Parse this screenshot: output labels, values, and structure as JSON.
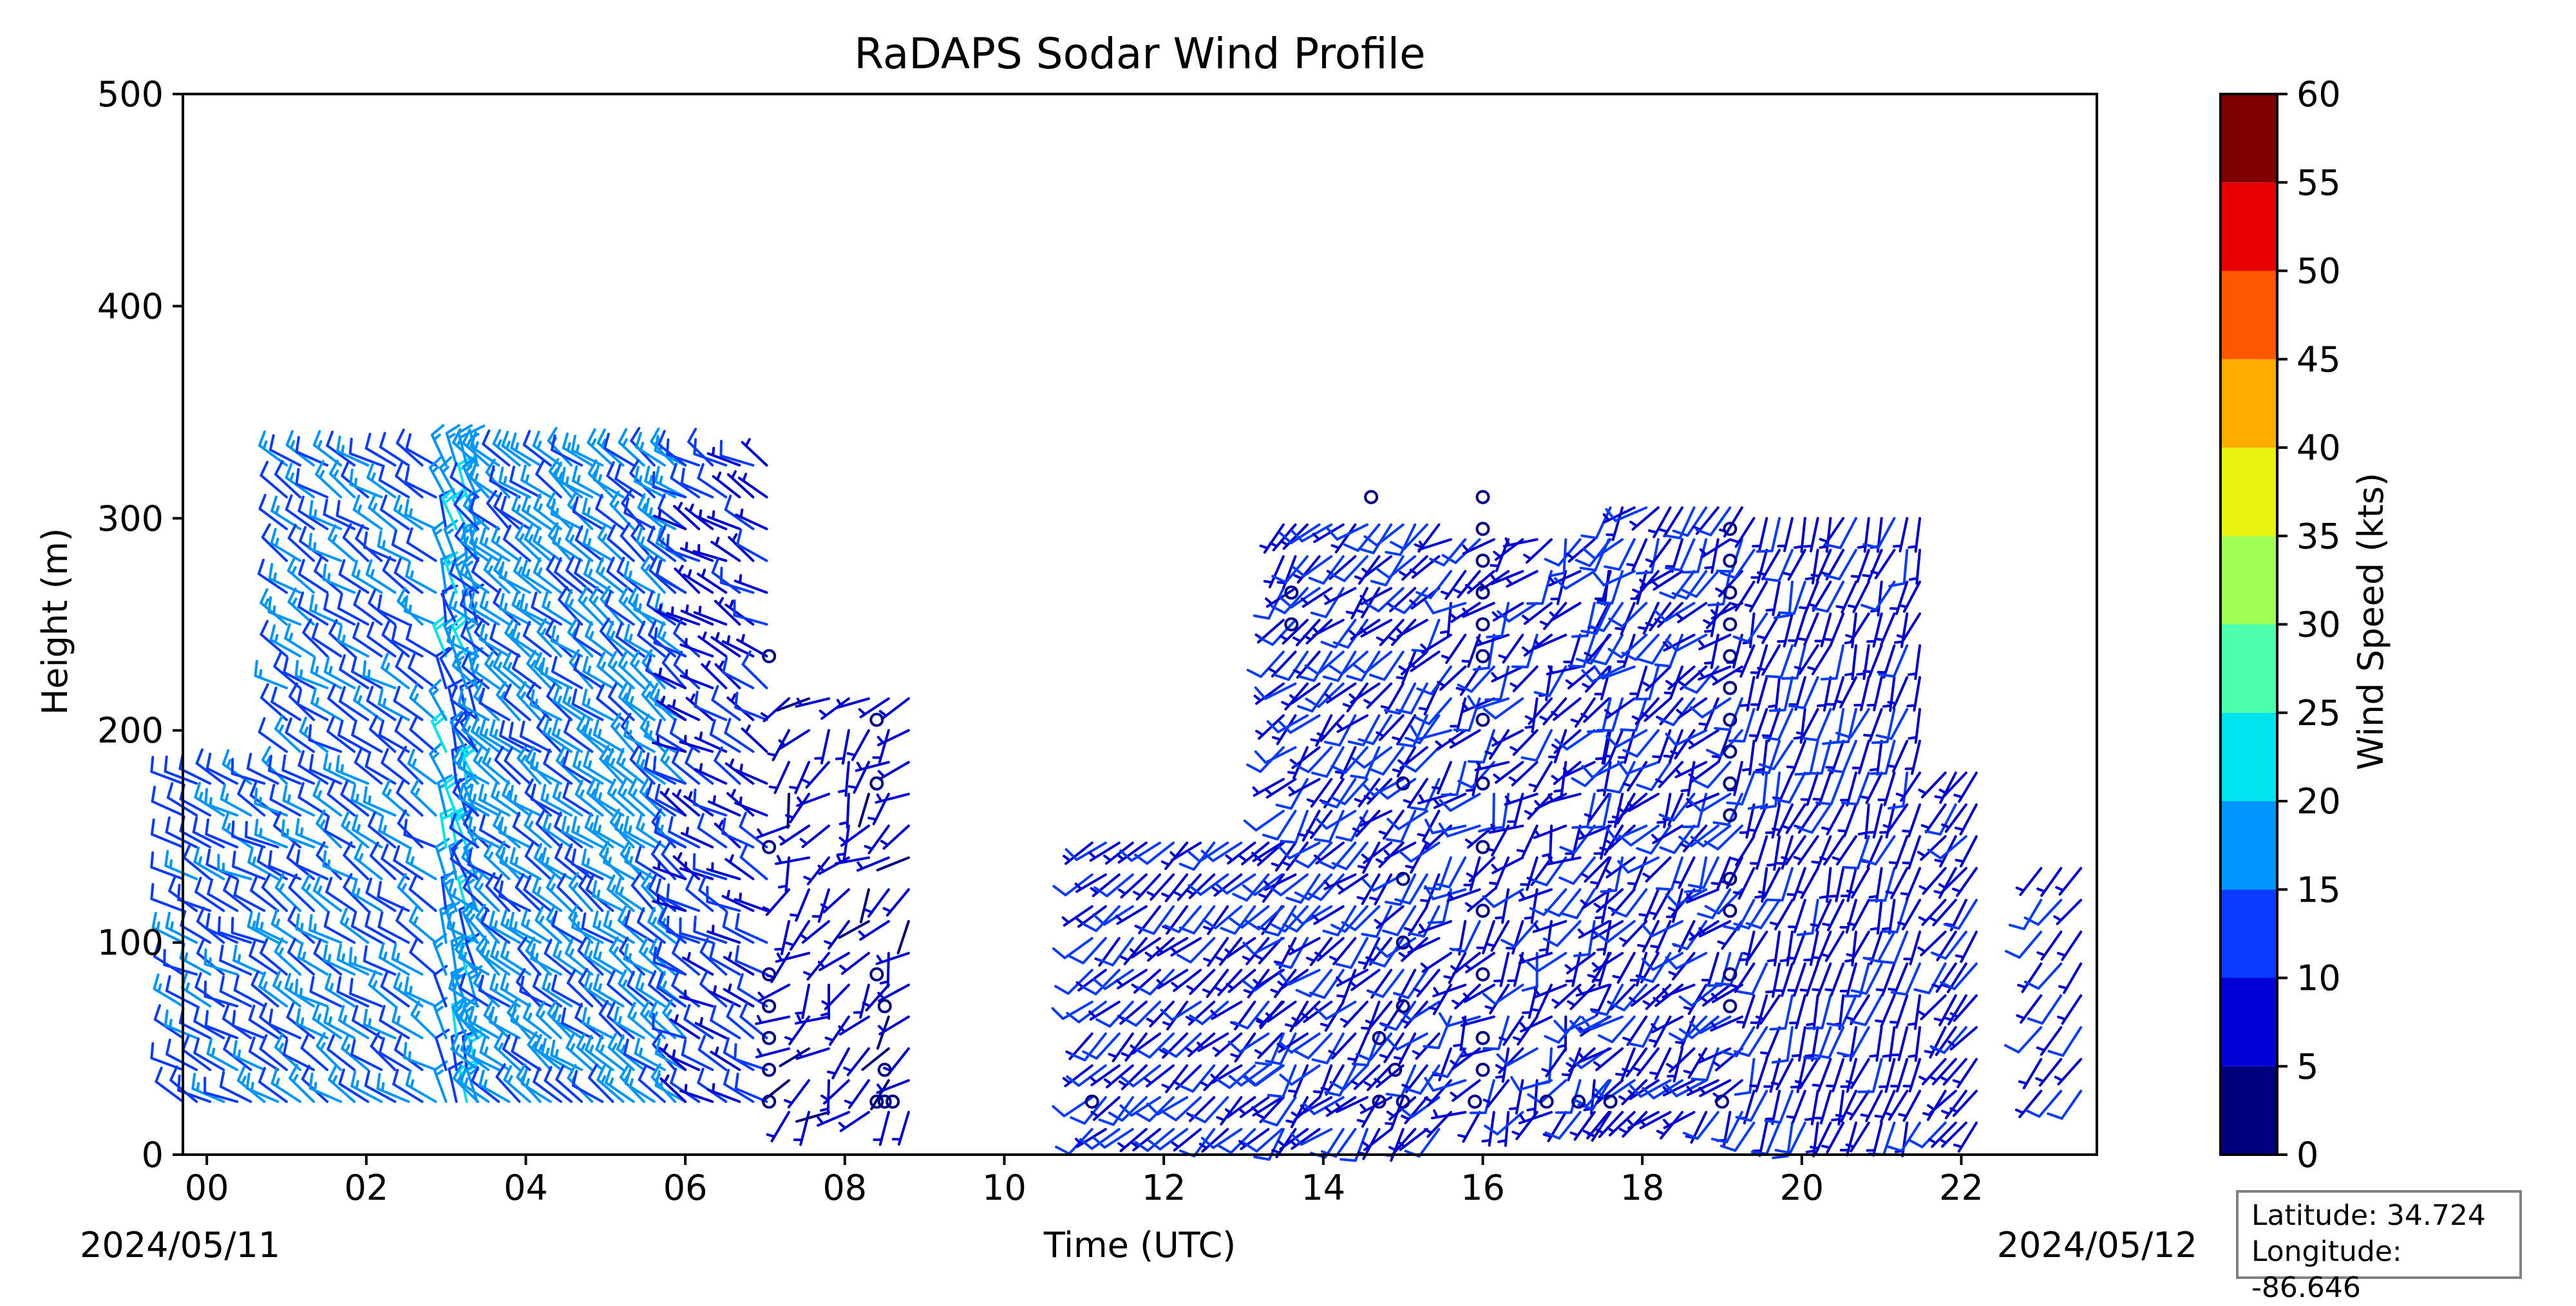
{
  "colors": {
    "axes": "#000000",
    "calm_marker": "#00008b",
    "colorbar": [
      "#00007f",
      "#0000d4",
      "#0a3cff",
      "#0096ff",
      "#00e4f0",
      "#4bffad",
      "#a0ff56",
      "#e8f20e",
      "#ffac00",
      "#ff5700",
      "#e80000",
      "#7f0000"
    ]
  },
  "info": {
    "latitude": "Latitude: 34.724",
    "longitude": "Longitude: -86.646"
  },
  "chart_data": {
    "type": "wind-barb profile",
    "title": "RaDAPS Sodar Wind Profile",
    "xlabel": "Time (UTC)",
    "ylabel": "Height (m)",
    "start_date_label": "2024/05/11",
    "end_date_label": "2024/05/12",
    "xlim": [
      -0.3,
      23.7
    ],
    "ylim": [
      0,
      500
    ],
    "x_ticks": [
      0,
      2,
      4,
      6,
      8,
      10,
      12,
      14,
      16,
      18,
      20,
      22
    ],
    "x_tick_labels": [
      "00",
      "02",
      "04",
      "06",
      "08",
      "10",
      "12",
      "14",
      "16",
      "18",
      "20",
      "22"
    ],
    "y_ticks": [
      0,
      100,
      200,
      300,
      400,
      500
    ],
    "y_tick_labels": [
      "0",
      "100",
      "200",
      "300",
      "400",
      "500"
    ],
    "colorbar": {
      "label": "Wind Speed (kts)",
      "bounds": [
        0,
        5,
        10,
        15,
        20,
        25,
        30,
        35,
        40,
        45,
        50,
        55,
        60
      ],
      "tick_labels": [
        "0",
        "5",
        "10",
        "15",
        "20",
        "25",
        "30",
        "35",
        "40",
        "45",
        "50",
        "55",
        "60"
      ]
    },
    "barb_blocks": [
      {
        "t_start": -0.3,
        "t_end": 1.0,
        "step": 0.17,
        "z_min": 25,
        "z_max": 175,
        "speed": [
          10,
          17
        ],
        "dir": [
          285,
          310
        ]
      },
      {
        "t_start": 1.0,
        "t_end": 3.0,
        "step": 0.17,
        "z_min": 25,
        "z_max": 330,
        "speed": [
          11,
          19
        ],
        "dir": [
          290,
          315
        ]
      },
      {
        "t_start": 3.0,
        "t_end": 3.4,
        "step": 0.13,
        "z_min": 25,
        "z_max": 330,
        "speed": [
          13,
          22
        ],
        "dir": [
          330,
          355
        ]
      },
      {
        "t_start": 3.4,
        "t_end": 6.0,
        "step": 0.13,
        "z_min": 25,
        "z_max": 330,
        "speed": [
          12,
          20
        ],
        "dir": [
          295,
          320
        ]
      },
      {
        "t_start": 6.0,
        "t_end": 7.1,
        "step": 0.17,
        "z_min": 25,
        "z_max": 325,
        "speed": [
          7,
          13
        ],
        "dir": [
          285,
          315
        ]
      },
      {
        "t_start": 7.3,
        "t_end": 8.9,
        "step": 0.25,
        "z_min": 20,
        "z_max": 215,
        "speed": [
          4,
          9
        ],
        "dir": [
          180,
          260
        ]
      },
      {
        "t_start": 11.1,
        "t_end": 13.5,
        "step": 0.17,
        "z_min": 12,
        "z_max": 155,
        "speed": [
          7,
          12
        ],
        "dir": [
          215,
          240
        ]
      },
      {
        "t_start": 13.5,
        "t_end": 15.5,
        "step": 0.15,
        "z_min": 12,
        "z_max": 305,
        "speed": [
          6,
          13
        ],
        "dir": [
          200,
          245
        ]
      },
      {
        "t_start": 15.6,
        "t_end": 17.6,
        "step": 0.18,
        "z_min": 20,
        "z_max": 290,
        "speed": [
          5,
          12
        ],
        "dir": [
          180,
          260
        ]
      },
      {
        "t_start": 17.6,
        "t_end": 19.3,
        "step": 0.15,
        "z_min": 20,
        "z_max": 310,
        "speed": [
          5,
          13
        ],
        "dir": [
          190,
          250
        ]
      },
      {
        "t_start": 19.4,
        "t_end": 21.5,
        "step": 0.16,
        "z_min": 15,
        "z_max": 300,
        "speed": [
          6,
          12
        ],
        "dir": [
          185,
          215
        ]
      },
      {
        "t_start": 21.8,
        "t_end": 22.3,
        "step": 0.13,
        "z_min": 15,
        "z_max": 185,
        "speed": [
          7,
          11
        ],
        "dir": [
          205,
          230
        ]
      },
      {
        "t_start": 23.0,
        "t_end": 23.7,
        "step": 0.25,
        "z_min": 30,
        "z_max": 135,
        "speed": [
          8,
          11
        ],
        "dir": [
          210,
          225
        ]
      }
    ],
    "calm_points": [
      {
        "t": 7.05,
        "z": 25
      },
      {
        "t": 7.05,
        "z": 40
      },
      {
        "t": 7.05,
        "z": 55
      },
      {
        "t": 7.05,
        "z": 70
      },
      {
        "t": 7.05,
        "z": 85
      },
      {
        "t": 7.05,
        "z": 145
      },
      {
        "t": 7.05,
        "z": 235
      },
      {
        "t": 8.4,
        "z": 25
      },
      {
        "t": 8.5,
        "z": 25
      },
      {
        "t": 8.6,
        "z": 25
      },
      {
        "t": 8.5,
        "z": 40
      },
      {
        "t": 8.5,
        "z": 70
      },
      {
        "t": 8.4,
        "z": 85
      },
      {
        "t": 8.4,
        "z": 175
      },
      {
        "t": 8.4,
        "z": 205
      },
      {
        "t": 11.1,
        "z": 25
      },
      {
        "t": 13.6,
        "z": 265
      },
      {
        "t": 13.6,
        "z": 250
      },
      {
        "t": 14.6,
        "z": 310
      },
      {
        "t": 14.7,
        "z": 25
      },
      {
        "t": 14.7,
        "z": 55
      },
      {
        "t": 14.9,
        "z": 40
      },
      {
        "t": 15.0,
        "z": 25
      },
      {
        "t": 15.0,
        "z": 70
      },
      {
        "t": 15.0,
        "z": 100
      },
      {
        "t": 15.0,
        "z": 130
      },
      {
        "t": 15.0,
        "z": 175
      },
      {
        "t": 16.0,
        "z": 310
      },
      {
        "t": 16.0,
        "z": 295
      },
      {
        "t": 16.0,
        "z": 280
      },
      {
        "t": 16.0,
        "z": 265
      },
      {
        "t": 16.0,
        "z": 250
      },
      {
        "t": 16.0,
        "z": 235
      },
      {
        "t": 16.0,
        "z": 205
      },
      {
        "t": 16.0,
        "z": 175
      },
      {
        "t": 16.0,
        "z": 145
      },
      {
        "t": 16.0,
        "z": 115
      },
      {
        "t": 16.0,
        "z": 85
      },
      {
        "t": 16.0,
        "z": 55
      },
      {
        "t": 16.0,
        "z": 40
      },
      {
        "t": 15.9,
        "z": 25
      },
      {
        "t": 16.8,
        "z": 25
      },
      {
        "t": 17.2,
        "z": 25
      },
      {
        "t": 17.6,
        "z": 25
      },
      {
        "t": 19.0,
        "z": 25
      },
      {
        "t": 19.1,
        "z": 70
      },
      {
        "t": 19.1,
        "z": 85
      },
      {
        "t": 19.1,
        "z": 115
      },
      {
        "t": 19.1,
        "z": 130
      },
      {
        "t": 19.1,
        "z": 160
      },
      {
        "t": 19.1,
        "z": 175
      },
      {
        "t": 19.1,
        "z": 190
      },
      {
        "t": 19.1,
        "z": 205
      },
      {
        "t": 19.1,
        "z": 220
      },
      {
        "t": 19.1,
        "z": 235
      },
      {
        "t": 19.1,
        "z": 250
      },
      {
        "t": 19.1,
        "z": 265
      },
      {
        "t": 19.1,
        "z": 280
      },
      {
        "t": 19.1,
        "z": 295
      }
    ]
  }
}
